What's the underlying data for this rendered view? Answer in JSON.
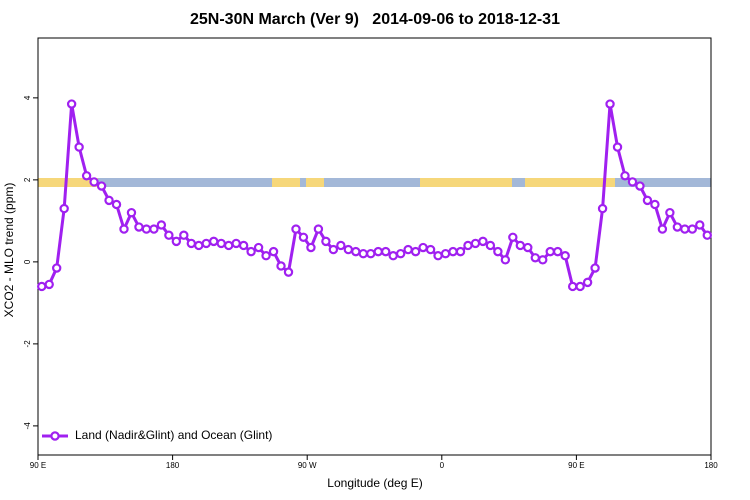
{
  "chart_data": {
    "type": "line",
    "title": "25N-30N March (Ver 9)   2014-09-06 to 2018-12-31",
    "x_label": "Longitude (deg E)",
    "y_label": "XCO2 - MLO trend (ppm)",
    "xlim": [
      90,
      540
    ],
    "ylim": [
      -4.71,
      5.46
    ],
    "xticks": [
      {
        "value": 90,
        "label": "90 E"
      },
      180,
      {
        "value": 270,
        "label": "90 W"
      },
      {
        "value": 360,
        "label": "0"
      },
      {
        "value": 450,
        "label": "90 E"
      },
      {
        "value": 540,
        "label": "180"
      }
    ],
    "yticks": [
      -4,
      -2,
      0,
      2,
      4
    ],
    "legend_position": "bottom-left",
    "x": [
      92.5,
      97.5,
      102.5,
      107.5,
      112.5,
      117.5,
      122.5,
      127.5,
      132.5,
      137.5,
      142.5,
      147.5,
      152.5,
      157.5,
      162.5,
      167.5,
      172.5,
      177.5,
      182.5,
      187.5,
      192.5,
      197.5,
      202.5,
      207.5,
      212.5,
      217.5,
      222.5,
      227.5,
      232.5,
      237.5,
      242.5,
      247.5,
      252.5,
      257.5,
      262.5,
      267.5,
      272.5,
      277.5,
      282.5,
      287.5,
      292.5,
      297.5,
      302.5,
      307.5,
      312.5,
      317.5,
      322.5,
      327.5,
      332.5,
      337.5,
      342.5,
      347.5,
      352.5,
      357.5,
      362.5,
      367.5,
      372.5,
      377.5,
      382.5,
      387.5,
      392.5,
      397.5,
      402.5,
      407.5,
      412.5,
      417.5,
      422.5,
      427.5,
      432.5,
      437.5,
      442.5,
      447.5,
      452.5,
      457.5,
      462.5,
      467.5,
      472.5,
      477.5,
      482.5,
      487.5,
      492.5,
      497.5,
      502.5,
      507.5,
      512.5,
      517.5,
      522.5,
      527.5,
      532.5,
      537.5
    ],
    "series": [
      {
        "name": "Land (Nadir&Glint) and Ocean (Glint)",
        "color": "#a020f0",
        "values": [
          -0.6,
          -0.55,
          -0.15,
          1.3,
          3.85,
          2.8,
          2.1,
          1.95,
          1.85,
          1.5,
          1.4,
          0.8,
          1.2,
          0.85,
          0.8,
          0.8,
          0.9,
          0.65,
          0.5,
          0.65,
          0.45,
          0.4,
          0.45,
          0.5,
          0.45,
          0.4,
          0.45,
          0.4,
          0.25,
          0.35,
          0.15,
          0.25,
          -0.1,
          -0.25,
          0.8,
          0.6,
          0.35,
          0.8,
          0.5,
          0.3,
          0.4,
          0.3,
          0.25,
          0.2,
          0.2,
          0.25,
          0.25,
          0.15,
          0.2,
          0.3,
          0.25,
          0.35,
          0.3,
          0.15,
          0.2,
          0.25,
          0.25,
          0.4,
          0.45,
          0.5,
          0.4,
          0.25,
          0.05,
          0.6,
          0.4,
          0.35,
          0.1,
          0.05,
          0.25,
          0.25,
          0.15,
          -0.6,
          -0.6,
          -0.5,
          -0.15,
          1.3,
          3.85,
          2.8,
          2.1,
          1.95,
          1.85,
          1.5,
          1.4,
          0.8,
          1.2,
          0.85,
          0.8,
          0.8,
          0.9,
          0.65
        ]
      }
    ]
  }
}
